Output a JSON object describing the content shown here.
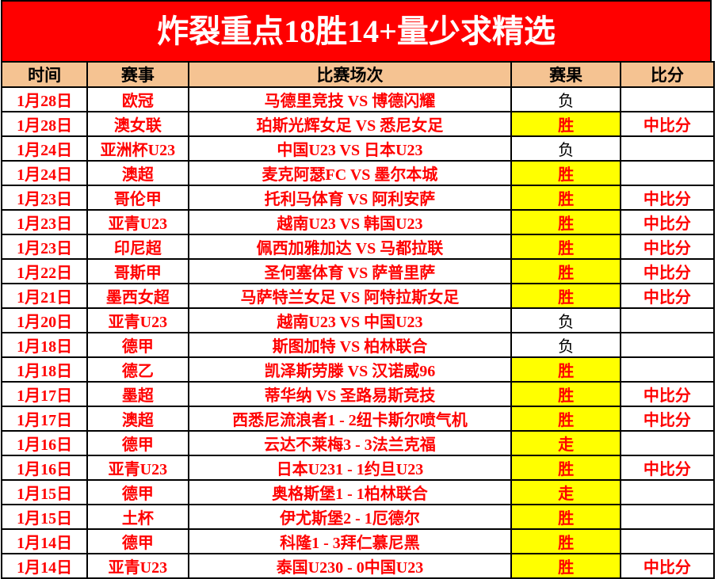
{
  "banner": {
    "title": "炸裂重点18胜14+量少求精选",
    "bg_color": "#FF0000",
    "text_color": "#FFFFFF"
  },
  "table": {
    "header": {
      "time": "时间",
      "league": "赛事",
      "match": "比赛场次",
      "result": "赛果",
      "score": "比分"
    },
    "header_bg_color": "#F5C392",
    "win_bg_color": "#FFFF00",
    "red_text_color": "#FF0000",
    "result_legend": {
      "win": "胜",
      "loss": "负",
      "push": "走"
    },
    "rows": [
      {
        "date": "1月28日",
        "league": "欧冠",
        "match": "马德里竞技 VS 博德闪耀",
        "result": "负",
        "result_type": "loss",
        "score": ""
      },
      {
        "date": "1月28日",
        "league": "澳女联",
        "match": "珀斯光辉女足 VS 悉尼女足",
        "result": "胜",
        "result_type": "win",
        "score": "中比分"
      },
      {
        "date": "1月24日",
        "league": "亚洲杯U23",
        "match": "中国U23 VS 日本U23",
        "result": "负",
        "result_type": "loss",
        "score": ""
      },
      {
        "date": "1月24日",
        "league": "澳超",
        "match": "麦克阿瑟FC VS 墨尔本城",
        "result": "胜",
        "result_type": "win",
        "score": ""
      },
      {
        "date": "1月23日",
        "league": "哥伦甲",
        "match": "托利马体育 VS 阿利安萨",
        "result": "胜",
        "result_type": "win",
        "score": "中比分"
      },
      {
        "date": "1月23日",
        "league": "亚青U23",
        "match": "越南U23 VS 韩国U23",
        "result": "胜",
        "result_type": "win",
        "score": "中比分"
      },
      {
        "date": "1月23日",
        "league": "印尼超",
        "match": "佩西加雅加达 VS 马都拉联",
        "result": "胜",
        "result_type": "win",
        "score": "中比分"
      },
      {
        "date": "1月22日",
        "league": "哥斯甲",
        "match": "圣何塞体育 VS 萨普里萨",
        "result": "胜",
        "result_type": "win",
        "score": "中比分"
      },
      {
        "date": "1月21日",
        "league": "墨西女超",
        "match": "马萨特兰女足 VS 阿特拉斯女足",
        "result": "胜",
        "result_type": "win",
        "score": "中比分"
      },
      {
        "date": "1月20日",
        "league": "亚青U23",
        "match": "越南U23 VS 中国U23",
        "result": "负",
        "result_type": "loss",
        "score": ""
      },
      {
        "date": "1月18日",
        "league": "德甲",
        "match": "斯图加特 VS 柏林联合",
        "result": "负",
        "result_type": "loss",
        "score": ""
      },
      {
        "date": "1月18日",
        "league": "德乙",
        "match": "凯泽斯劳滕 VS 汉诺威96",
        "result": "胜",
        "result_type": "win",
        "score": ""
      },
      {
        "date": "1月17日",
        "league": "墨超",
        "match": "蒂华纳 VS 圣路易斯竞技",
        "result": "胜",
        "result_type": "win",
        "score": "中比分"
      },
      {
        "date": "1月17日",
        "league": "澳超",
        "match": "西悉尼流浪者1 - 2纽卡斯尔喷气机",
        "result": "胜",
        "result_type": "win",
        "score": "中比分"
      },
      {
        "date": "1月16日",
        "league": "德甲",
        "match": "云达不莱梅3 - 3法兰克福",
        "result": "走",
        "result_type": "push",
        "score": ""
      },
      {
        "date": "1月16日",
        "league": "亚青U23",
        "match": "日本U231 - 1约旦U23",
        "result": "胜",
        "result_type": "win",
        "score": "中比分"
      },
      {
        "date": "1月15日",
        "league": "德甲",
        "match": "奥格斯堡1 - 1柏林联合",
        "result": "走",
        "result_type": "push",
        "score": ""
      },
      {
        "date": "1月15日",
        "league": "土杯",
        "match": "伊尤斯堡2 - 1厄德尔",
        "result": "胜",
        "result_type": "win",
        "score": ""
      },
      {
        "date": "1月14日",
        "league": "德甲",
        "match": "科隆1 - 3拜仁慕尼黑",
        "result": "胜",
        "result_type": "win",
        "score": ""
      },
      {
        "date": "1月14日",
        "league": "亚青U23",
        "match": "泰国U230 - 0中国U23",
        "result": "胜",
        "result_type": "win",
        "score": "中比分"
      }
    ]
  }
}
